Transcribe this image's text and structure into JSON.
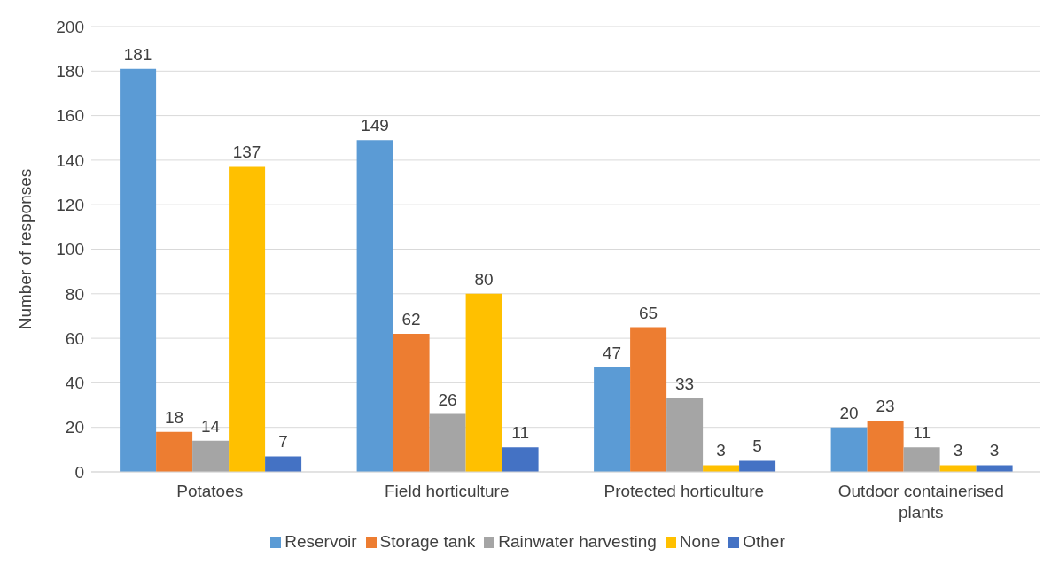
{
  "chart_data": {
    "type": "bar",
    "ylabel": "Number of responses",
    "categories": [
      "Potatoes",
      "Field horticulture",
      "Protected horticulture",
      "Outdoor containerised plants"
    ],
    "series": [
      {
        "name": "Reservoir",
        "color": "#5b9bd5",
        "values": [
          181,
          149,
          47,
          20
        ]
      },
      {
        "name": "Storage tank",
        "color": "#ed7d31",
        "values": [
          18,
          62,
          65,
          23
        ]
      },
      {
        "name": "Rainwater harvesting",
        "color": "#a5a5a5",
        "values": [
          14,
          26,
          33,
          11
        ]
      },
      {
        "name": "None",
        "color": "#ffc000",
        "values": [
          137,
          80,
          3,
          3
        ]
      },
      {
        "name": "Other",
        "color": "#4472c4",
        "values": [
          7,
          11,
          5,
          3
        ]
      }
    ],
    "ylim": [
      0,
      200
    ],
    "yticks": [
      0,
      20,
      40,
      60,
      80,
      100,
      120,
      140,
      160,
      180,
      200
    ],
    "grid": "y",
    "legend": "bottom",
    "data_labels": true
  }
}
